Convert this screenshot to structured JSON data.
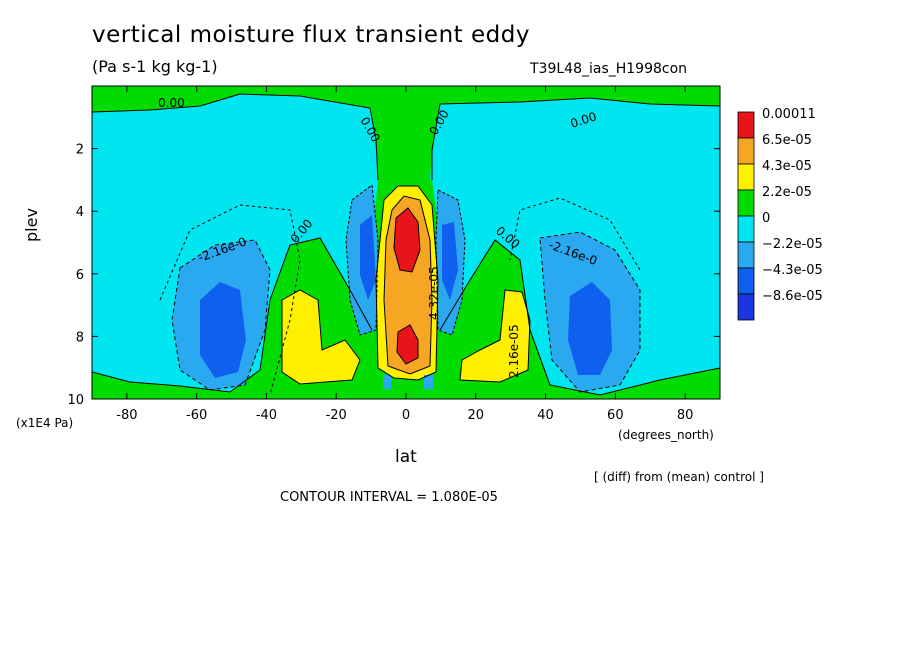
{
  "header": {
    "title": "vertical moisture flux transient eddy",
    "units": "(Pa s-1 kg kg-1)",
    "run": "T39L48_ias_H1998con"
  },
  "axes": {
    "ylabel": "plev",
    "yunit": "(x1E4 Pa)",
    "xlabel": "lat",
    "xunit": "(degrees_north)"
  },
  "footer": {
    "diff_note": "[ (diff) from (mean) control ]",
    "contour_interval": "CONTOUR INTERVAL = 1.080E-05"
  },
  "chart_data": {
    "type": "heatmap",
    "title": "vertical moisture flux transient eddy",
    "xlabel": "lat",
    "ylabel": "plev",
    "xlim": [
      -90,
      90
    ],
    "ylim": [
      0,
      10
    ],
    "y_reversed": true,
    "x_ticks": [
      -80,
      -60,
      -40,
      -20,
      0,
      20,
      40,
      60,
      80
    ],
    "y_ticks": [
      2,
      4,
      6,
      8,
      10
    ],
    "contour_labels": [
      "0.00",
      "0.00",
      "0.00",
      "0.00",
      "0.00",
      "-2.16e-0",
      "-2.16e-0",
      "2.16e-05",
      "4.32e-05",
      "0.00"
    ],
    "colorbar": {
      "levels": [
        "0.00011",
        "6.5e-05",
        "4.3e-05",
        "2.2e-05",
        "0",
        "−2.2e-05",
        "−4.3e-05",
        "−8.6e-05"
      ],
      "colors": [
        "#e8141a",
        "#f5a623",
        "#fff000",
        "#00dc00",
        "#00e6f0",
        "#2aa8f0",
        "#1060f0",
        "#1a36e0"
      ]
    }
  }
}
